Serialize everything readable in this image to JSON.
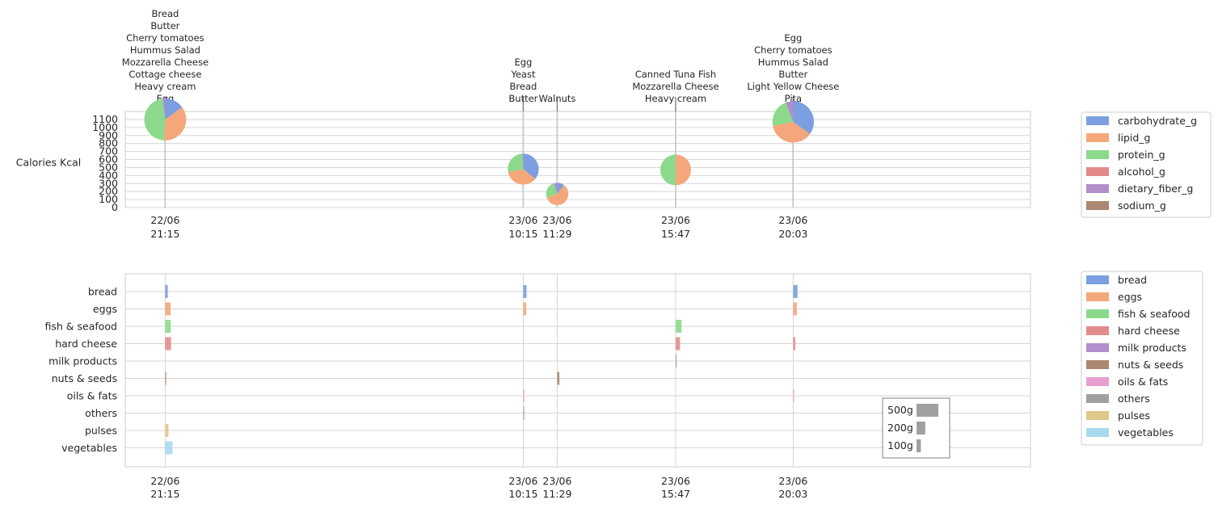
{
  "chart_data": [
    {
      "type": "pie-timeline",
      "ylabel": "Calories Kcal",
      "yticks": [
        0,
        100,
        200,
        300,
        400,
        500,
        600,
        700,
        800,
        900,
        1000,
        1100
      ],
      "ylim": [
        0,
        1200
      ],
      "grid": true,
      "legend_position": "right",
      "components": [
        {
          "name": "carbohydrate_g",
          "color": "#7b9fe0"
        },
        {
          "name": "lipid_g",
          "color": "#f4a77a"
        },
        {
          "name": "protein_g",
          "color": "#8cd98c"
        },
        {
          "name": "alcohol_g",
          "color": "#e38b8b"
        },
        {
          "name": "dietary_fiber_g",
          "color": "#b08fcc"
        },
        {
          "name": "sodium_g",
          "color": "#ac8870"
        }
      ],
      "meals": [
        {
          "date": "22/06",
          "time": "21:15",
          "t": 0,
          "kcal": 1100,
          "foods": [
            "Bread",
            "Butter",
            "Cherry tomatoes",
            "Hummus Salad",
            "Mozzarella Cheese",
            "Cottage cheese",
            "Heavy cream",
            "Egg"
          ],
          "fractions": [
            0.15,
            0.36,
            0.47,
            0.0,
            0.02,
            0.0
          ]
        },
        {
          "date": "23/06",
          "time": "10:15",
          "t": 780,
          "kcal": 480,
          "foods": [
            "Egg",
            "Yeast",
            "Bread",
            "Butter"
          ],
          "fractions": [
            0.36,
            0.36,
            0.27,
            0.0,
            0.01,
            0.0
          ]
        },
        {
          "date": "23/06",
          "time": "11:29",
          "t": 854,
          "kcal": 170,
          "foods": [
            "Walnuts"
          ],
          "fractions": [
            0.1,
            0.6,
            0.25,
            0.0,
            0.05,
            0.0
          ]
        },
        {
          "date": "23/06",
          "time": "15:47",
          "t": 1112,
          "kcal": 470,
          "foods": [
            "Canned Tuna Fish",
            "Mozzarella Cheese",
            "Heavy cream"
          ],
          "fractions": [
            0.0,
            0.5,
            0.5,
            0.0,
            0.0,
            0.0
          ]
        },
        {
          "date": "23/06",
          "time": "20:03",
          "t": 1368,
          "kcal": 1070,
          "foods": [
            "Egg",
            "Cherry tomatoes",
            "Hummus Salad",
            "Butter",
            "Light Yellow Cheese",
            "Pita"
          ],
          "fractions": [
            0.35,
            0.37,
            0.22,
            0.0,
            0.06,
            0.0
          ]
        }
      ]
    },
    {
      "type": "bar",
      "orientation": "horizontal-timeline",
      "categories": [
        "bread",
        "eggs",
        "fish & seafood",
        "hard cheese",
        "milk products",
        "nuts & seeds",
        "oils & fats",
        "others ",
        "pulses",
        "vegetables"
      ],
      "colors": [
        "#7b9fe0",
        "#f4a77a",
        "#8cd98c",
        "#e38b8b",
        "#b08fcc",
        "#ac8870",
        "#e89fd0",
        "#a0a0a0",
        "#e0c88a",
        "#a9d9ee"
      ],
      "legend_labels": [
        "bread",
        "eggs",
        "fish & seafood",
        "hard cheese",
        "milk products",
        "nuts & seeds",
        "oils & fats",
        "others",
        "pulses",
        "vegetables"
      ],
      "legend_position": "right",
      "grid": true,
      "x": [
        {
          "date": "22/06",
          "time": "21:15",
          "t": 0
        },
        {
          "date": "23/06",
          "time": "10:15",
          "t": 780
        },
        {
          "date": "23/06",
          "time": "11:29",
          "t": 854
        },
        {
          "date": "23/06",
          "time": "15:47",
          "t": 1112
        },
        {
          "date": "23/06",
          "time": "20:03",
          "t": 1368
        }
      ],
      "series": [
        {
          "name": "22/06 21:15",
          "values": [
            70,
            150,
            150,
            160,
            0,
            5,
            0,
            0,
            90,
            200
          ]
        },
        {
          "name": "23/06 10:15",
          "values": [
            90,
            80,
            0,
            0,
            0,
            0,
            5,
            10,
            0,
            0
          ]
        },
        {
          "name": "23/06 11:29",
          "values": [
            0,
            0,
            0,
            0,
            0,
            60,
            0,
            0,
            0,
            0
          ]
        },
        {
          "name": "23/06 15:47",
          "values": [
            0,
            0,
            160,
            120,
            20,
            0,
            0,
            0,
            0,
            0
          ]
        },
        {
          "name": "23/06 20:03",
          "values": [
            120,
            100,
            0,
            60,
            0,
            0,
            5,
            0,
            0,
            0
          ]
        }
      ],
      "scale_legend": [
        "500g",
        "200g",
        "100g"
      ],
      "scale_values": [
        500,
        200,
        100
      ]
    }
  ]
}
